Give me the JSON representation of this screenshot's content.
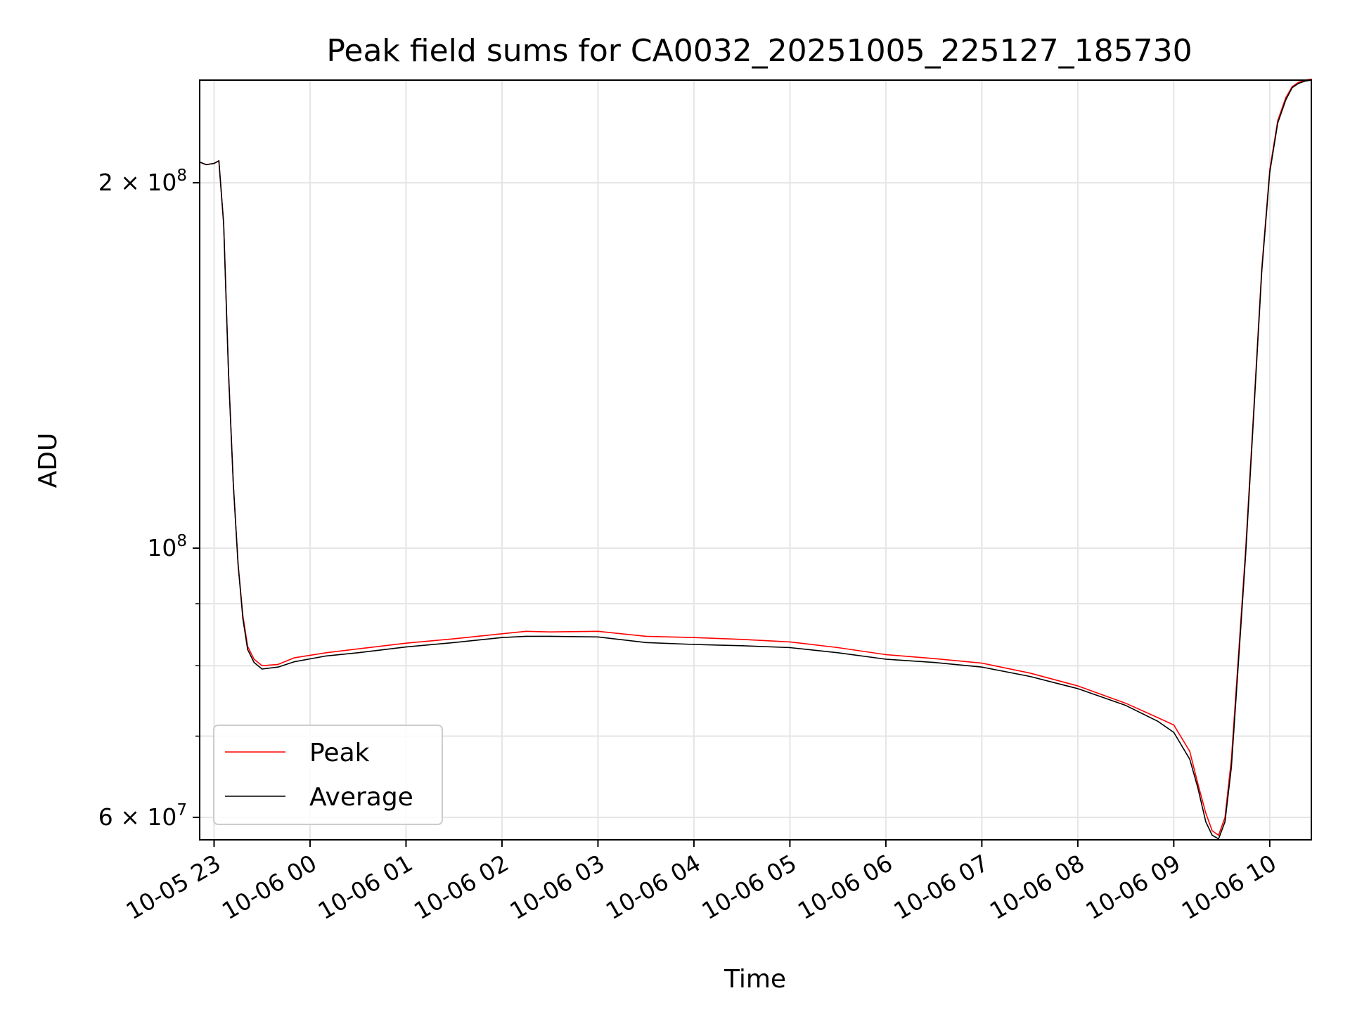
{
  "chart_data": {
    "type": "line",
    "title": "Peak field sums for CA0032_20251005_225127_185730",
    "xlabel": "Time",
    "ylabel": "ADU",
    "x_scale": "time",
    "y_scale": "log",
    "xlim": [
      "2025-10-05 22:51",
      "2025-10-06 10:26"
    ],
    "ylim": [
      57500000,
      243000000
    ],
    "grid": true,
    "legend_position": "lower-left",
    "x_ticks": [
      {
        "value": "2025-10-05 23:00",
        "label": "10-05 23"
      },
      {
        "value": "2025-10-06 00:00",
        "label": "10-06 00"
      },
      {
        "value": "2025-10-06 01:00",
        "label": "10-06 01"
      },
      {
        "value": "2025-10-06 02:00",
        "label": "10-06 02"
      },
      {
        "value": "2025-10-06 03:00",
        "label": "10-06 03"
      },
      {
        "value": "2025-10-06 04:00",
        "label": "10-06 04"
      },
      {
        "value": "2025-10-06 05:00",
        "label": "10-06 05"
      },
      {
        "value": "2025-10-06 06:00",
        "label": "10-06 06"
      },
      {
        "value": "2025-10-06 07:00",
        "label": "10-06 07"
      },
      {
        "value": "2025-10-06 08:00",
        "label": "10-06 08"
      },
      {
        "value": "2025-10-06 09:00",
        "label": "10-06 09"
      },
      {
        "value": "2025-10-06 10:00",
        "label": "10-06 10"
      }
    ],
    "y_ticks": [
      {
        "value": 60000000,
        "mant": "6 × 10",
        "exp": "7"
      },
      {
        "value": 100000000,
        "mant": "10",
        "exp": "8"
      },
      {
        "value": 200000000,
        "mant": "2 × 10",
        "exp": "8"
      }
    ],
    "y_minor_ticks": [
      70000000,
      80000000,
      90000000
    ],
    "series": [
      {
        "name": "Peak",
        "color": "#ff0000",
        "x": [
          "2025-10-05 22:51",
          "2025-10-05 22:55",
          "2025-10-05 23:00",
          "2025-10-05 23:03",
          "2025-10-05 23:06",
          "2025-10-05 23:09",
          "2025-10-05 23:12",
          "2025-10-05 23:15",
          "2025-10-05 23:18",
          "2025-10-05 23:21",
          "2025-10-05 23:25",
          "2025-10-05 23:30",
          "2025-10-05 23:40",
          "2025-10-05 23:50",
          "2025-10-06 00:10",
          "2025-10-06 00:30",
          "2025-10-06 01:00",
          "2025-10-06 01:30",
          "2025-10-06 02:00",
          "2025-10-06 02:15",
          "2025-10-06 02:30",
          "2025-10-06 03:00",
          "2025-10-06 03:30",
          "2025-10-06 04:00",
          "2025-10-06 04:30",
          "2025-10-06 05:00",
          "2025-10-06 05:30",
          "2025-10-06 06:00",
          "2025-10-06 06:30",
          "2025-10-06 07:00",
          "2025-10-06 07:30",
          "2025-10-06 08:00",
          "2025-10-06 08:30",
          "2025-10-06 08:50",
          "2025-10-06 09:00",
          "2025-10-06 09:10",
          "2025-10-06 09:15",
          "2025-10-06 09:20",
          "2025-10-06 09:24",
          "2025-10-06 09:28",
          "2025-10-06 09:32",
          "2025-10-06 09:36",
          "2025-10-06 09:40",
          "2025-10-06 09:45",
          "2025-10-06 09:50",
          "2025-10-06 09:55",
          "2025-10-06 10:00",
          "2025-10-06 10:05",
          "2025-10-06 10:10",
          "2025-10-06 10:14",
          "2025-10-06 10:18",
          "2025-10-06 10:22",
          "2025-10-06 10:26"
        ],
        "values": [
          208000000,
          207000000,
          207500000,
          208500000,
          185000000,
          140000000,
          113000000,
          97000000,
          88000000,
          83000000,
          81000000,
          80000000,
          80200000,
          81200000,
          82000000,
          82600000,
          83500000,
          84200000,
          85000000,
          85400000,
          85300000,
          85400000,
          84600000,
          84400000,
          84100000,
          83700000,
          82800000,
          81700000,
          81100000,
          80400000,
          78900000,
          77000000,
          74500000,
          72500000,
          71500000,
          68000000,
          64000000,
          60500000,
          58500000,
          58000000,
          60000000,
          67000000,
          80000000,
          100000000,
          130000000,
          170000000,
          205000000,
          225000000,
          235000000,
          240000000,
          242000000,
          243000000,
          243500000
        ]
      },
      {
        "name": "Average",
        "color": "#000000",
        "x": [
          "2025-10-05 22:51",
          "2025-10-05 22:55",
          "2025-10-05 23:00",
          "2025-10-05 23:03",
          "2025-10-05 23:06",
          "2025-10-05 23:09",
          "2025-10-05 23:12",
          "2025-10-05 23:15",
          "2025-10-05 23:18",
          "2025-10-05 23:21",
          "2025-10-05 23:25",
          "2025-10-05 23:30",
          "2025-10-05 23:40",
          "2025-10-05 23:50",
          "2025-10-06 00:10",
          "2025-10-06 00:30",
          "2025-10-06 01:00",
          "2025-10-06 01:30",
          "2025-10-06 02:00",
          "2025-10-06 02:15",
          "2025-10-06 02:30",
          "2025-10-06 03:00",
          "2025-10-06 03:30",
          "2025-10-06 04:00",
          "2025-10-06 04:30",
          "2025-10-06 05:00",
          "2025-10-06 05:30",
          "2025-10-06 06:00",
          "2025-10-06 06:30",
          "2025-10-06 07:00",
          "2025-10-06 07:30",
          "2025-10-06 08:00",
          "2025-10-06 08:30",
          "2025-10-06 08:50",
          "2025-10-06 09:00",
          "2025-10-06 09:10",
          "2025-10-06 09:15",
          "2025-10-06 09:20",
          "2025-10-06 09:24",
          "2025-10-06 09:28",
          "2025-10-06 09:32",
          "2025-10-06 09:36",
          "2025-10-06 09:40",
          "2025-10-06 09:45",
          "2025-10-06 09:50",
          "2025-10-06 09:55",
          "2025-10-06 10:00",
          "2025-10-06 10:05",
          "2025-10-06 10:10",
          "2025-10-06 10:14",
          "2025-10-06 10:18",
          "2025-10-06 10:22",
          "2025-10-06 10:26"
        ],
        "values": [
          208000000,
          207000000,
          207500000,
          208500000,
          185000000,
          140000000,
          113000000,
          97000000,
          87500000,
          82500000,
          80500000,
          79500000,
          79800000,
          80600000,
          81500000,
          82000000,
          82900000,
          83600000,
          84400000,
          84600000,
          84600000,
          84500000,
          83600000,
          83300000,
          83100000,
          82800000,
          82000000,
          81000000,
          80500000,
          79800000,
          78400000,
          76600000,
          74200000,
          72000000,
          70500000,
          67000000,
          63500000,
          59500000,
          58000000,
          57600000,
          59500000,
          66000000,
          79000000,
          99000000,
          129000000,
          169000000,
          204000000,
          224000000,
          234000000,
          239500000,
          241500000,
          242500000,
          243000000
        ]
      }
    ]
  }
}
